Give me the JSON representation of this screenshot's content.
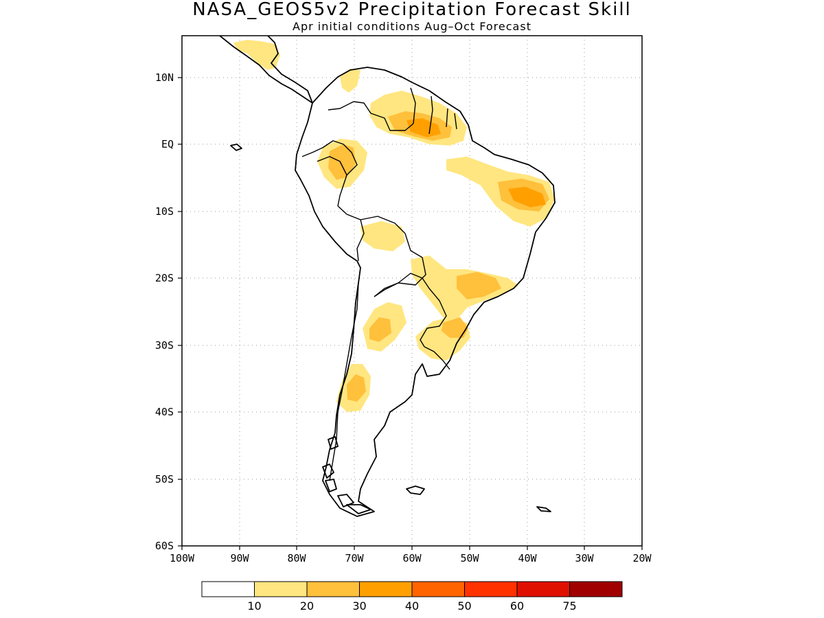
{
  "title": "NASA_GEOS5v2 Precipitation Forecast Skill",
  "subtitle": "Apr initial conditions  Aug–Oct Forecast",
  "axes": {
    "lat_ticks": [
      "10N",
      "EQ",
      "10S",
      "20S",
      "30S",
      "40S",
      "50S",
      "60S"
    ],
    "lon_ticks": [
      "100W",
      "90W",
      "80W",
      "70W",
      "60W",
      "50W",
      "40W",
      "30W",
      "20W"
    ],
    "lat_range": [
      -60,
      15
    ],
    "lon_range": [
      -100,
      -20
    ],
    "grid": "dotted"
  },
  "colorbar": {
    "labels": [
      "10",
      "20",
      "30",
      "40",
      "50",
      "60",
      "75"
    ],
    "colors": [
      "#ffffff",
      "#ffe680",
      "#ffc03c",
      "#ffa000",
      "#ff6400",
      "#ff3200",
      "#e01000",
      "#a00000"
    ]
  },
  "regions": {
    "central_america": "#ffe680",
    "venezuela": "#ffe680",
    "guianas_north": "#ffe680",
    "guianas_core": "#ffc03c",
    "guianas_peak": "#ffa000",
    "ecuador_peru": "#ffe680",
    "ecuador_peru_core": "#ffc03c",
    "ne_brazil": "#ffe680",
    "ne_brazil_core": "#ffc03c",
    "ne_brazil_peak": "#ffa000",
    "bolivia": "#ffe680",
    "se_brazil": "#ffe680",
    "se_brazil_core": "#ffc03c",
    "s_brazil": "#ffe680",
    "s_brazil_core": "#ffc03c",
    "nw_argentina": "#ffe680",
    "nw_argentina_core": "#ffc03c",
    "chile": "#ffe680",
    "chile_core": "#ffc03c"
  }
}
